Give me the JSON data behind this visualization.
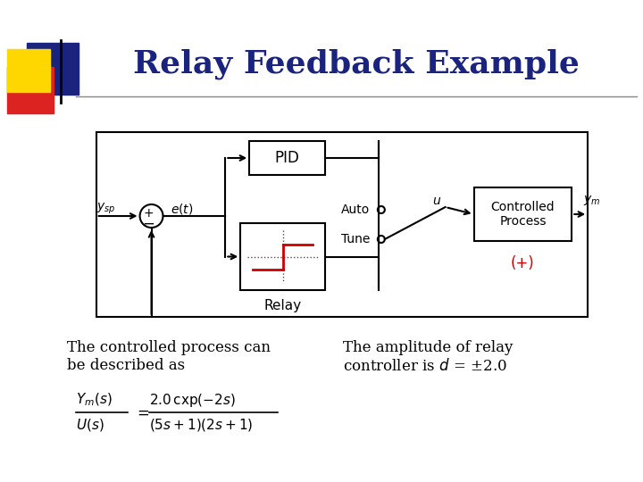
{
  "title": "Relay Feedback Example",
  "title_color": "#1a237e",
  "title_fontsize": 26,
  "bg_color": "#ffffff",
  "text_left_line1": "The controlled process can",
  "text_left_line2": "be described as",
  "text_right_line1": "The amplitude of relay",
  "text_right_line2": "controller is $d$ = ±2.0",
  "accent_yellow": "#FFD700",
  "accent_red": "#DD2222",
  "accent_blue": "#1a237e",
  "relay_color": "#CC0000",
  "separator_color": "#888888"
}
